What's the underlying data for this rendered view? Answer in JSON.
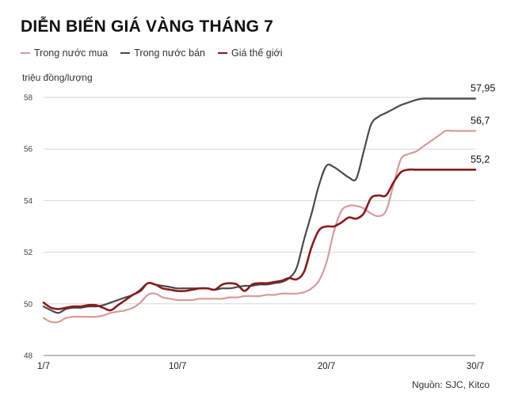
{
  "title": "DIỄN BIẾN GIÁ VÀNG THÁNG 7",
  "source": "Nguồn: SJC, Kitco",
  "chart_data": {
    "type": "line",
    "ylabel": "triệu đồng/lượng",
    "ylim": [
      48,
      58
    ],
    "yticks": [
      48,
      50,
      52,
      54,
      56,
      58
    ],
    "xlim": [
      1,
      30
    ],
    "xticks": [
      {
        "x": 1,
        "label": "1/7"
      },
      {
        "x": 10,
        "label": "10/7"
      },
      {
        "x": 20,
        "label": "20/7"
      },
      {
        "x": 30,
        "label": "30/7"
      }
    ],
    "grid": true,
    "legend": "top-left",
    "x": [
      1,
      1.5,
      2,
      2.5,
      3,
      3.5,
      4,
      4.5,
      5,
      5.5,
      6,
      6.5,
      7,
      7.5,
      8,
      8.5,
      9,
      9.5,
      10,
      10.5,
      11,
      11.5,
      12,
      12.5,
      13,
      13.5,
      14,
      14.5,
      15,
      15.5,
      16,
      16.5,
      17,
      17.5,
      18,
      18.5,
      19,
      19.5,
      20,
      20.5,
      21,
      21.5,
      22,
      22.5,
      23,
      23.5,
      24,
      24.5,
      25,
      25.5,
      26,
      26.5,
      27,
      27.5,
      28,
      28.5,
      29,
      29.5,
      30
    ],
    "series": [
      {
        "name": "Trong nước mua",
        "color": "#d99a9a",
        "end_label": "56,7",
        "values": [
          49.45,
          49.3,
          49.3,
          49.45,
          49.5,
          49.5,
          49.5,
          49.5,
          49.55,
          49.65,
          49.7,
          49.75,
          49.85,
          50.05,
          50.35,
          50.4,
          50.25,
          50.2,
          50.15,
          50.15,
          50.15,
          50.2,
          50.2,
          50.2,
          50.2,
          50.25,
          50.25,
          50.3,
          50.3,
          50.3,
          50.35,
          50.35,
          50.4,
          50.4,
          50.4,
          50.45,
          50.6,
          50.9,
          51.6,
          52.8,
          53.6,
          53.8,
          53.8,
          53.7,
          53.5,
          53.4,
          53.6,
          54.6,
          55.6,
          55.8,
          55.9,
          56.1,
          56.3,
          56.5,
          56.7,
          56.7,
          56.7,
          56.7,
          56.7
        ]
      },
      {
        "name": "Trong nước bán",
        "color": "#4a4a4a",
        "end_label": "57,95",
        "values": [
          49.9,
          49.75,
          49.65,
          49.8,
          49.85,
          49.85,
          49.9,
          49.9,
          49.95,
          50.05,
          50.15,
          50.25,
          50.35,
          50.55,
          50.8,
          50.75,
          50.7,
          50.65,
          50.6,
          50.6,
          50.6,
          50.6,
          50.6,
          50.55,
          50.6,
          50.6,
          50.65,
          50.7,
          50.7,
          50.75,
          50.75,
          50.8,
          50.85,
          51.0,
          51.4,
          52.5,
          53.5,
          54.6,
          55.35,
          55.3,
          55.1,
          54.9,
          54.85,
          55.9,
          56.95,
          57.25,
          57.4,
          57.55,
          57.7,
          57.8,
          57.9,
          57.95,
          57.95,
          57.95,
          57.95,
          57.95,
          57.95,
          57.95,
          57.95
        ]
      },
      {
        "name": "Giá thế giới",
        "color": "#8b1a1a",
        "end_label": "55,2",
        "values": [
          50.05,
          49.85,
          49.8,
          49.85,
          49.9,
          49.9,
          49.95,
          49.95,
          49.85,
          49.75,
          49.95,
          50.15,
          50.35,
          50.5,
          50.8,
          50.75,
          50.6,
          50.55,
          50.5,
          50.5,
          50.55,
          50.6,
          50.6,
          50.55,
          50.75,
          50.8,
          50.75,
          50.5,
          50.75,
          50.8,
          50.8,
          50.85,
          50.9,
          51.0,
          50.95,
          51.25,
          52.2,
          52.85,
          53.0,
          53.0,
          53.15,
          53.35,
          53.3,
          53.5,
          54.1,
          54.2,
          54.2,
          54.7,
          55.1,
          55.2,
          55.2,
          55.2,
          55.2,
          55.2,
          55.2,
          55.2,
          55.2,
          55.2,
          55.2
        ]
      }
    ]
  }
}
